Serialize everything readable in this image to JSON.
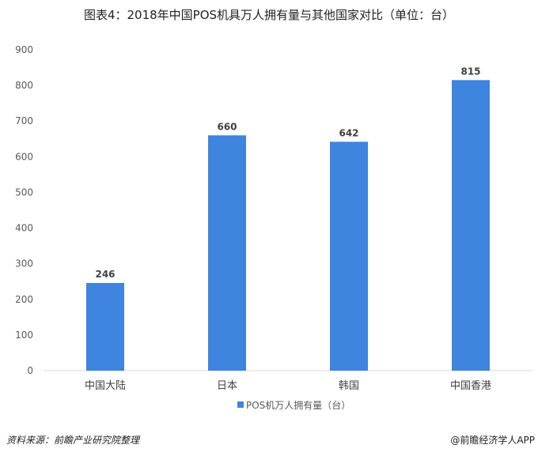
{
  "chart_data": {
    "type": "bar",
    "title": "图表4：2018年中国POS机具万人拥有量与其他国家对比（单位：台）",
    "categories": [
      "中国大陆",
      "日本",
      "韩国",
      "中国香港"
    ],
    "series": [
      {
        "name": "POS机万人拥有量（台）",
        "values": [
          246,
          660,
          642,
          815
        ]
      }
    ],
    "ylim": [
      0,
      900
    ],
    "yticks": [
      0,
      100,
      200,
      300,
      400,
      500,
      600,
      700,
      800,
      900
    ],
    "grid": false,
    "legend": "bottom",
    "bar_color": "#3F84DF"
  },
  "footer": {
    "source": "资料来源：前瞻产业研究院整理",
    "brand": "@前瞻经济学人APP"
  }
}
